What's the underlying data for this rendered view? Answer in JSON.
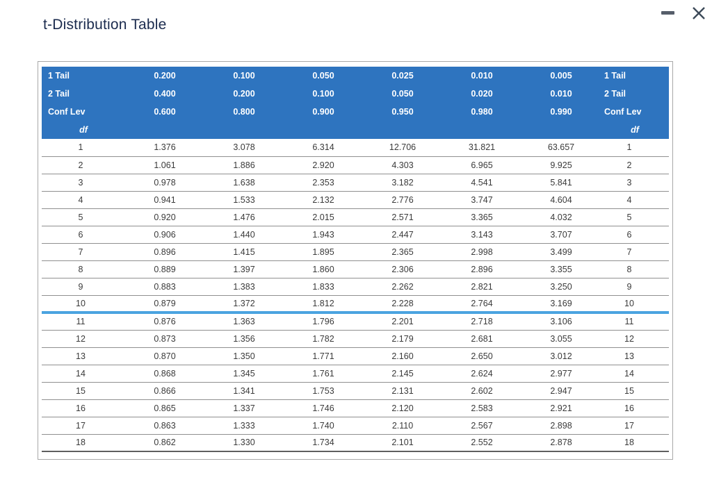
{
  "window": {
    "title": "t-Distribution Table",
    "controls": [
      {
        "icon": "minimize-icon"
      },
      {
        "icon": "close-icon"
      }
    ]
  },
  "table": {
    "header_rows": [
      {
        "label_left": "1 Tail",
        "values": [
          "0.200",
          "0.100",
          "0.050",
          "0.025",
          "0.010",
          "0.005"
        ],
        "label_right": "1 Tail"
      },
      {
        "label_left": "2 Tail",
        "values": [
          "0.400",
          "0.200",
          "0.100",
          "0.050",
          "0.020",
          "0.010"
        ],
        "label_right": "2 Tail"
      },
      {
        "label_left": "Conf Lev",
        "values": [
          "0.600",
          "0.800",
          "0.900",
          "0.950",
          "0.980",
          "0.990"
        ],
        "label_right": "Conf Lev"
      }
    ],
    "df_label": "df",
    "highlight_after_df": 10,
    "rows": [
      {
        "df": "1",
        "values": [
          "1.376",
          "3.078",
          "6.314",
          "12.706",
          "31.821",
          "63.657"
        ]
      },
      {
        "df": "2",
        "values": [
          "1.061",
          "1.886",
          "2.920",
          "4.303",
          "6.965",
          "9.925"
        ]
      },
      {
        "df": "3",
        "values": [
          "0.978",
          "1.638",
          "2.353",
          "3.182",
          "4.541",
          "5.841"
        ]
      },
      {
        "df": "4",
        "values": [
          "0.941",
          "1.533",
          "2.132",
          "2.776",
          "3.747",
          "4.604"
        ]
      },
      {
        "df": "5",
        "values": [
          "0.920",
          "1.476",
          "2.015",
          "2.571",
          "3.365",
          "4.032"
        ]
      },
      {
        "df": "6",
        "values": [
          "0.906",
          "1.440",
          "1.943",
          "2.447",
          "3.143",
          "3.707"
        ]
      },
      {
        "df": "7",
        "values": [
          "0.896",
          "1.415",
          "1.895",
          "2.365",
          "2.998",
          "3.499"
        ]
      },
      {
        "df": "8",
        "values": [
          "0.889",
          "1.397",
          "1.860",
          "2.306",
          "2.896",
          "3.355"
        ]
      },
      {
        "df": "9",
        "values": [
          "0.883",
          "1.383",
          "1.833",
          "2.262",
          "2.821",
          "3.250"
        ]
      },
      {
        "df": "10",
        "values": [
          "0.879",
          "1.372",
          "1.812",
          "2.228",
          "2.764",
          "3.169"
        ]
      },
      {
        "df": "11",
        "values": [
          "0.876",
          "1.363",
          "1.796",
          "2.201",
          "2.718",
          "3.106"
        ]
      },
      {
        "df": "12",
        "values": [
          "0.873",
          "1.356",
          "1.782",
          "2.179",
          "2.681",
          "3.055"
        ]
      },
      {
        "df": "13",
        "values": [
          "0.870",
          "1.350",
          "1.771",
          "2.160",
          "2.650",
          "3.012"
        ]
      },
      {
        "df": "14",
        "values": [
          "0.868",
          "1.345",
          "1.761",
          "2.145",
          "2.624",
          "2.977"
        ]
      },
      {
        "df": "15",
        "values": [
          "0.866",
          "1.341",
          "1.753",
          "2.131",
          "2.602",
          "2.947"
        ]
      },
      {
        "df": "16",
        "values": [
          "0.865",
          "1.337",
          "1.746",
          "2.120",
          "2.583",
          "2.921"
        ]
      },
      {
        "df": "17",
        "values": [
          "0.863",
          "1.333",
          "1.740",
          "2.110",
          "2.567",
          "2.898"
        ]
      },
      {
        "df": "18",
        "values": [
          "0.862",
          "1.330",
          "1.734",
          "2.101",
          "2.552",
          "2.878"
        ]
      }
    ]
  },
  "colors": {
    "header_blue": "#2E74BF",
    "highlight_blue": "#4AA3E0",
    "row_line": "#8F8F8F",
    "title_text": "#1B2B4E",
    "data_text": "#3A3A3A"
  }
}
